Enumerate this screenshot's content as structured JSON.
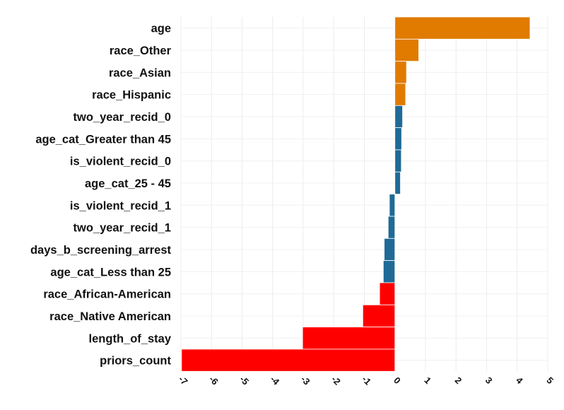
{
  "chart_data": {
    "type": "bar",
    "orientation": "horizontal",
    "title": "",
    "xlabel": "",
    "ylabel": "",
    "xlim": [
      -7,
      5
    ],
    "x_ticks": [
      -7,
      -6,
      -5,
      -4,
      -3,
      -2,
      -1,
      0,
      1,
      2,
      3,
      4,
      5
    ],
    "x_tick_labels": [
      "-7",
      "-6",
      "-5",
      "-4",
      "-3",
      "-2",
      "-1",
      "0",
      "1",
      "2",
      "3",
      "4",
      "5"
    ],
    "grid": true,
    "legend": "none",
    "categories": [
      "age",
      "race_Other",
      "race_Asian",
      "race_Hispanic",
      "two_year_recid_0",
      "age_cat_Greater than 45",
      "is_violent_recid_0",
      "age_cat_25 - 45",
      "is_violent_recid_1",
      "two_year_recid_1",
      "days_b_screening_arrest",
      "age_cat_Less than 25",
      "race_African-American",
      "race_Native American",
      "length_of_stay",
      "priors_count"
    ],
    "values": [
      4.42,
      0.78,
      0.38,
      0.35,
      0.25,
      0.22,
      0.21,
      0.18,
      -0.18,
      -0.22,
      -0.35,
      -0.38,
      -0.5,
      -1.05,
      -3.02,
      -6.98
    ],
    "colors": [
      "#E07B00",
      "#E07B00",
      "#E07B00",
      "#E07B00",
      "#1F6A96",
      "#1F6A96",
      "#1F6A96",
      "#1F6A96",
      "#1F6A96",
      "#1F6A96",
      "#1F6A96",
      "#1F6A96",
      "#FF0000",
      "#FF0000",
      "#FF0000",
      "#FF0000"
    ]
  }
}
